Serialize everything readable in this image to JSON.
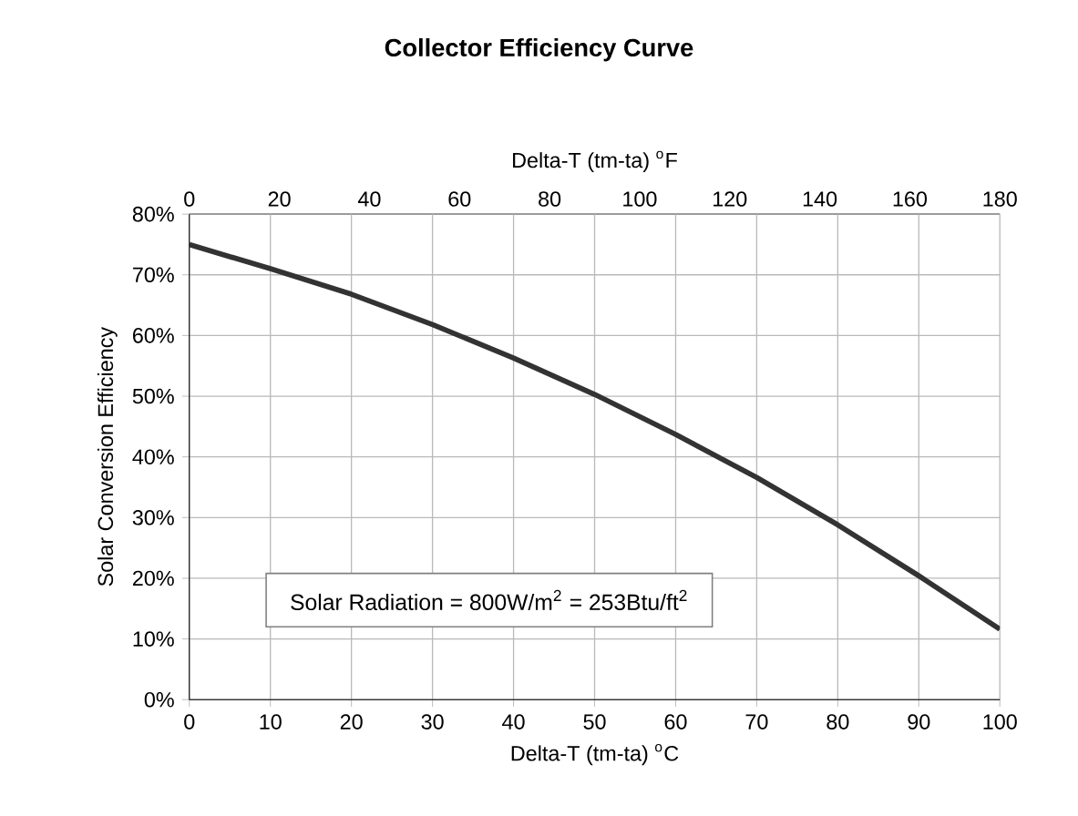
{
  "chart_data": {
    "type": "line",
    "title": "Collector Efficiency Curve",
    "xlabel": "Delta-T (tm-ta)  $^{o}$C",
    "x2label": "Delta-T (tm-ta)  $^{o}$F",
    "ylabel": "Solar Conversion Efficiency",
    "x": [
      0,
      10,
      20,
      30,
      40,
      50,
      60,
      70,
      80,
      90,
      100
    ],
    "series": [
      {
        "color": "#333333",
        "values": [
          75,
          71,
          66.8,
          61.8,
          56.3,
          50.3,
          43.7,
          36.6,
          28.8,
          20.4,
          11.6
        ]
      }
    ],
    "xlim": [
      0,
      100
    ],
    "xticks": [
      0,
      10,
      20,
      30,
      40,
      50,
      60,
      70,
      80,
      90,
      100
    ],
    "x2lim": [
      0,
      180
    ],
    "x2ticks": [
      0,
      20,
      40,
      60,
      80,
      100,
      120,
      140,
      160,
      180
    ],
    "ylim": [
      0,
      80
    ],
    "yticks": [
      {
        "value": 0,
        "label": "0%"
      },
      {
        "value": 10,
        "label": "10%"
      },
      {
        "value": 20,
        "label": "20%"
      },
      {
        "value": 30,
        "label": "30%"
      },
      {
        "value": 40,
        "label": "40%"
      },
      {
        "value": 50,
        "label": "50%"
      },
      {
        "value": 60,
        "label": "60%"
      },
      {
        "value": 70,
        "label": "70%"
      },
      {
        "value": 80,
        "label": "80%"
      }
    ],
    "annotations": [
      "Solar Radiation = 800W/m$^{2}$ = 253Btu/ft$^{2}$"
    ],
    "grid": true,
    "marker": "none",
    "line_style": "solid"
  }
}
